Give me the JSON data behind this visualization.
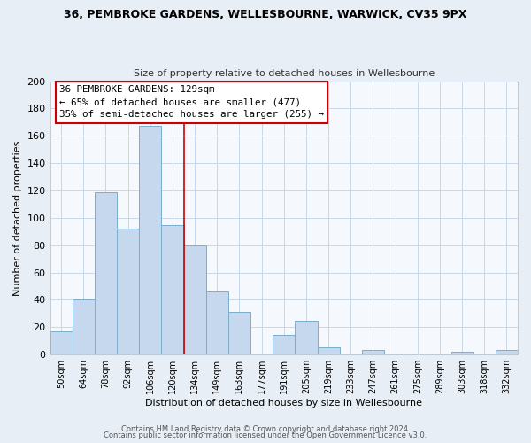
{
  "title": "36, PEMBROKE GARDENS, WELLESBOURNE, WARWICK, CV35 9PX",
  "subtitle": "Size of property relative to detached houses in Wellesbourne",
  "xlabel": "Distribution of detached houses by size in Wellesbourne",
  "ylabel": "Number of detached properties",
  "bar_labels": [
    "50sqm",
    "64sqm",
    "78sqm",
    "92sqm",
    "106sqm",
    "120sqm",
    "134sqm",
    "149sqm",
    "163sqm",
    "177sqm",
    "191sqm",
    "205sqm",
    "219sqm",
    "233sqm",
    "247sqm",
    "261sqm",
    "275sqm",
    "289sqm",
    "303sqm",
    "318sqm",
    "332sqm"
  ],
  "bar_values": [
    17,
    40,
    119,
    92,
    167,
    95,
    80,
    46,
    31,
    0,
    14,
    25,
    5,
    0,
    3,
    0,
    0,
    0,
    2,
    0,
    3
  ],
  "bar_color": "#c5d8ed",
  "bar_edge_color": "#7aadcc",
  "vline_x": 5.5,
  "vline_color": "#cc0000",
  "annotation_title": "36 PEMBROKE GARDENS: 129sqm",
  "annotation_line1": "← 65% of detached houses are smaller (477)",
  "annotation_line2": "35% of semi-detached houses are larger (255) →",
  "annotation_box_color": "#ffffff",
  "annotation_box_edge": "#cc0000",
  "ylim": [
    0,
    200
  ],
  "yticks": [
    0,
    20,
    40,
    60,
    80,
    100,
    120,
    140,
    160,
    180,
    200
  ],
  "footer1": "Contains HM Land Registry data © Crown copyright and database right 2024.",
  "footer2": "Contains public sector information licensed under the Open Government Licence v3.0.",
  "bg_color": "#e8eef5",
  "plot_bg_color": "#f5f8fc"
}
